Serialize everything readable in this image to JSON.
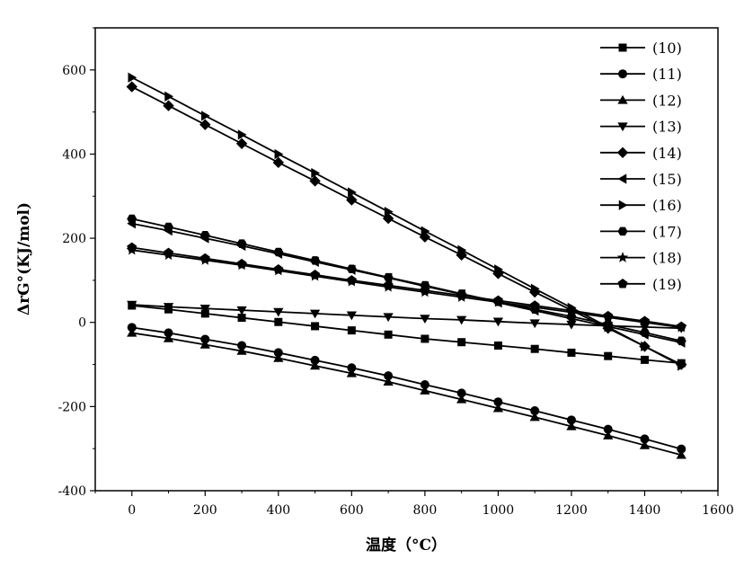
{
  "chart_data": {
    "type": "line",
    "xlabel": "温度（°C）",
    "ylabel": "ΔrG°(KJ/mol)",
    "xlim": [
      -100,
      1600
    ],
    "ylim": [
      -400,
      700
    ],
    "x_ticks": [
      0,
      200,
      400,
      600,
      800,
      1000,
      1200,
      1400,
      1600
    ],
    "y_ticks": [
      -400,
      -200,
      0,
      200,
      400,
      600
    ],
    "x_tick_labels": [
      "0",
      "200",
      "400",
      "600",
      "800",
      "1000",
      "1200",
      "1400",
      "1600"
    ],
    "y_tick_labels": [
      "-400",
      "-200",
      "0",
      "200",
      "400",
      "600"
    ],
    "legend_position": "top-right",
    "grid": false,
    "x": [
      0,
      100,
      200,
      300,
      400,
      500,
      600,
      700,
      800,
      900,
      1000,
      1100,
      1200,
      1300,
      1400,
      1500
    ],
    "series": [
      {
        "name": "(10)",
        "marker": "square",
        "values": [
          40,
          31,
          21,
          11,
          1,
          -9,
          -19,
          -29,
          -39,
          -47,
          -55,
          -63,
          -72,
          -80,
          -89,
          -97
        ]
      },
      {
        "name": "(11)",
        "marker": "circle",
        "values": [
          -12,
          -25,
          -40,
          -55,
          -72,
          -90,
          -108,
          -127,
          -148,
          -168,
          -189,
          -210,
          -232,
          -254,
          -277,
          -301
        ]
      },
      {
        "name": "(12)",
        "marker": "triangle-up",
        "values": [
          -25,
          -38,
          -53,
          -68,
          -85,
          -103,
          -121,
          -141,
          -162,
          -183,
          -204,
          -225,
          -247,
          -269,
          -292,
          -315
        ]
      },
      {
        "name": "(13)",
        "marker": "triangle-down",
        "values": [
          42,
          37,
          33,
          29,
          25,
          21,
          17,
          13,
          9,
          6,
          2,
          -2,
          -5,
          -8,
          -11,
          -14
        ]
      },
      {
        "name": "(14)",
        "marker": "diamond",
        "values": [
          560,
          515,
          470,
          425,
          380,
          336,
          291,
          247,
          203,
          160,
          116,
          72,
          29,
          -14,
          -57,
          -100
        ]
      },
      {
        "name": "(15)",
        "marker": "triangle-left",
        "values": [
          235,
          218,
          200,
          182,
          163,
          144,
          125,
          106,
          86,
          67,
          47,
          28,
          9,
          -10,
          -29,
          -48
        ]
      },
      {
        "name": "(16)",
        "marker": "triangle-right",
        "values": [
          582,
          537,
          491,
          446,
          400,
          355,
          309,
          263,
          217,
          172,
          126,
          80,
          35,
          -11,
          -57,
          -103
        ]
      },
      {
        "name": "(17)",
        "marker": "hexagon",
        "values": [
          246,
          227,
          207,
          187,
          167,
          147,
          127,
          107,
          88,
          68,
          49,
          31,
          14,
          -5,
          -24,
          -44
        ]
      },
      {
        "name": "(18)",
        "marker": "star",
        "values": [
          172,
          160,
          148,
          136,
          123,
          110,
          97,
          84,
          72,
          60,
          48,
          36,
          24,
          12,
          0,
          -12
        ]
      },
      {
        "name": "(19)",
        "marker": "pentagon",
        "values": [
          178,
          165,
          152,
          139,
          126,
          113,
          100,
          88,
          76,
          64,
          52,
          40,
          28,
          15,
          3,
          -10
        ]
      }
    ]
  }
}
